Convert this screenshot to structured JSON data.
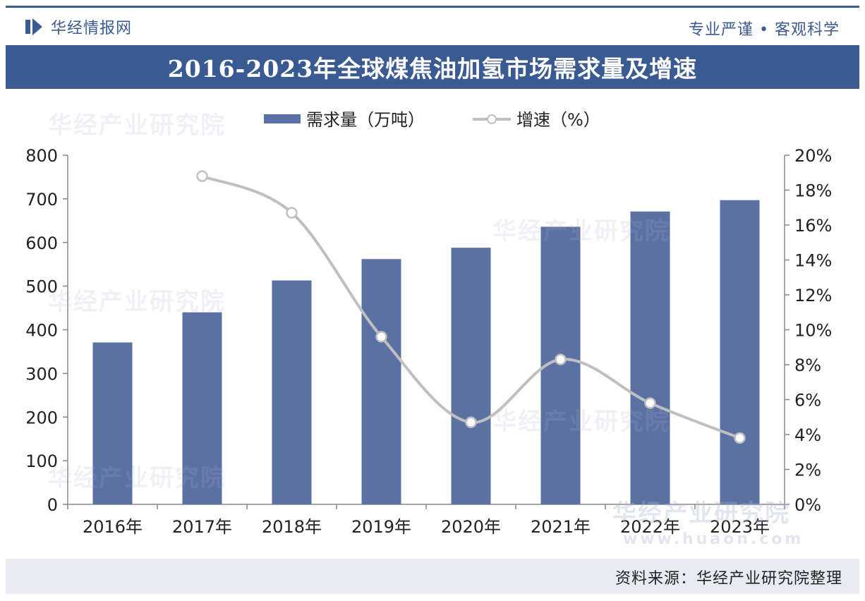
{
  "header": {
    "logo_text": "华经情报网",
    "slogan": "专业严谨 • 客观科学"
  },
  "chart_title": "2016-2023年全球煤焦油加氢市场需求量及增速",
  "watermarks": {
    "brand": "华经产业研究院",
    "url": "www.huaon.com"
  },
  "source": "资料来源：华经产业研究院整理",
  "colors": {
    "bar": "#5b70a3",
    "line": "#bfbfbf",
    "title_bg": "#3a5a92",
    "footer_bg": "#e8ebf1"
  },
  "chart_data": {
    "type": "bar",
    "categories": [
      "2016年",
      "2017年",
      "2018年",
      "2019年",
      "2020年",
      "2021年",
      "2022年",
      "2023年"
    ],
    "series": [
      {
        "name": "需求量（万吨）",
        "type": "bar",
        "axis": "left",
        "values": [
          371,
          440,
          513,
          562,
          588,
          636,
          671,
          697
        ]
      },
      {
        "name": "增速（%）",
        "type": "line",
        "axis": "right",
        "values": [
          null,
          18.8,
          16.7,
          9.6,
          4.7,
          8.3,
          5.8,
          3.8
        ]
      }
    ],
    "y_left": {
      "min": 0,
      "max": 800,
      "ticks": [
        "0",
        "100",
        "200",
        "300",
        "400",
        "500",
        "600",
        "700",
        "800"
      ]
    },
    "y_right": {
      "min": 0,
      "max": 20,
      "ticks": [
        "0%",
        "2%",
        "4%",
        "6%",
        "8%",
        "10%",
        "12%",
        "14%",
        "16%",
        "18%",
        "20%"
      ]
    },
    "legend_position": "top-center",
    "grid": false
  }
}
